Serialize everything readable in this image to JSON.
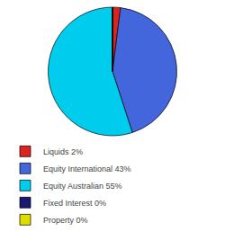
{
  "chart_data": {
    "type": "pie",
    "categories": [
      "Liquids 2%",
      "Equity International 43%",
      "Equity Australian 55%",
      "Fixed Interest 0%",
      "Property 0%"
    ],
    "values": [
      2,
      43,
      55,
      0.001,
      0.001
    ],
    "colors": [
      "#dd2222",
      "#4466dd",
      "#00ccee",
      "#1a1a6e",
      "#dddd00"
    ],
    "legend": "bottom"
  }
}
